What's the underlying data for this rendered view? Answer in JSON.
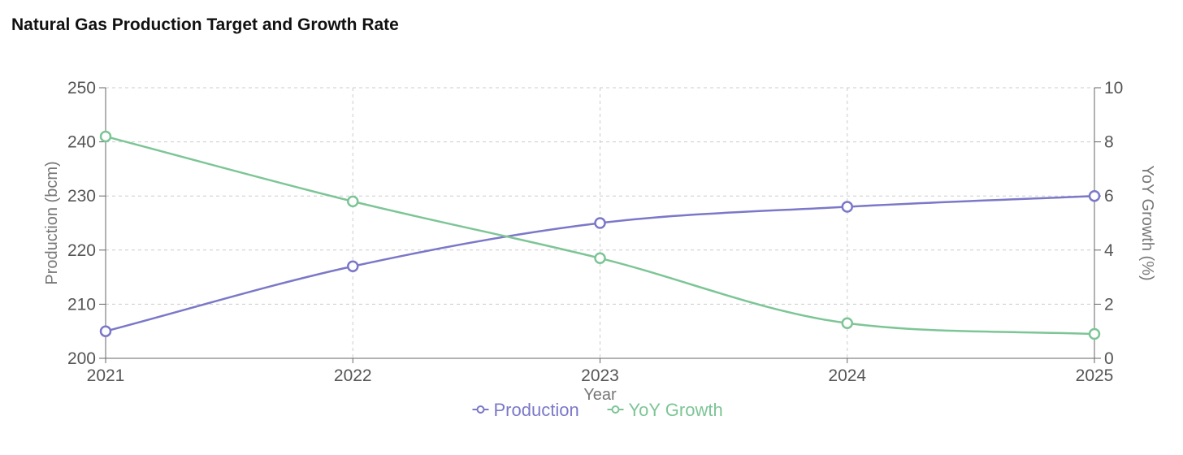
{
  "chart_data": {
    "type": "line",
    "title": "Natural Gas Production Target and Growth Rate",
    "xlabel": "Year",
    "ylabel": "Production (bcm)",
    "y2label": "YoY Growth (%)",
    "categories": [
      "2021",
      "2022",
      "2023",
      "2024",
      "2025"
    ],
    "ylim": [
      200,
      250
    ],
    "y2lim": [
      0,
      10
    ],
    "yticks": [
      "200",
      "210",
      "220",
      "230",
      "240",
      "250"
    ],
    "y2ticks": [
      "0",
      "2",
      "4",
      "6",
      "8",
      "10"
    ],
    "grid": true,
    "legend_position": "bottom",
    "series": [
      {
        "name": "Production",
        "axis": "left",
        "color": "#7b78c8",
        "values": [
          205,
          217,
          225,
          228,
          230
        ]
      },
      {
        "name": "YoY Growth",
        "axis": "right",
        "color": "#7dc596",
        "values": [
          8.2,
          5.8,
          3.7,
          1.3,
          0.9
        ]
      }
    ]
  }
}
